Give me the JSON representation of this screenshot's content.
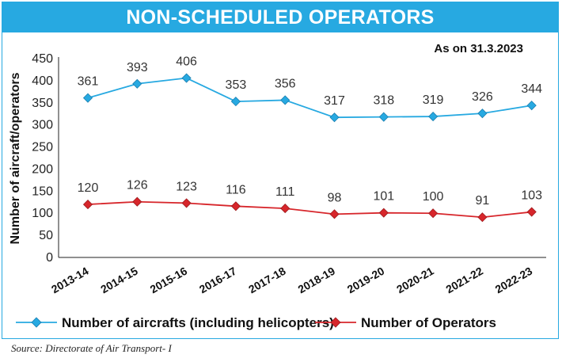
{
  "title": "NON-SCHEDULED OPERATORS",
  "date_note": "As on 31.3.2023",
  "source": "Source: Directorate of Air Transport- I",
  "colors": {
    "accent": "#27a9e1",
    "aircraft_line": "#27a9e1",
    "operators_line": "#d7262b"
  },
  "chart_data": {
    "type": "line",
    "ylabel": "Number of aircraft/operators",
    "xlabel": "",
    "ylim": [
      0,
      450
    ],
    "yticks": [
      0,
      50,
      100,
      150,
      200,
      250,
      300,
      350,
      400,
      450
    ],
    "grid": false,
    "legend_position": "bottom",
    "categories": [
      "2013-14",
      "2014-15",
      "2015-16",
      "2016-17",
      "2017-18",
      "2018-19",
      "2019-20",
      "2020-21",
      "2021-22",
      "2022-23"
    ],
    "series": [
      {
        "name": "Number of aircrafts (including helicopters)",
        "color": "#27a9e1",
        "marker": "diamond",
        "values": [
          361,
          393,
          406,
          353,
          356,
          317,
          318,
          319,
          326,
          344
        ]
      },
      {
        "name": "Number of Operators",
        "color": "#d7262b",
        "marker": "diamond",
        "values": [
          120,
          126,
          123,
          116,
          111,
          98,
          101,
          100,
          91,
          103
        ]
      }
    ]
  }
}
